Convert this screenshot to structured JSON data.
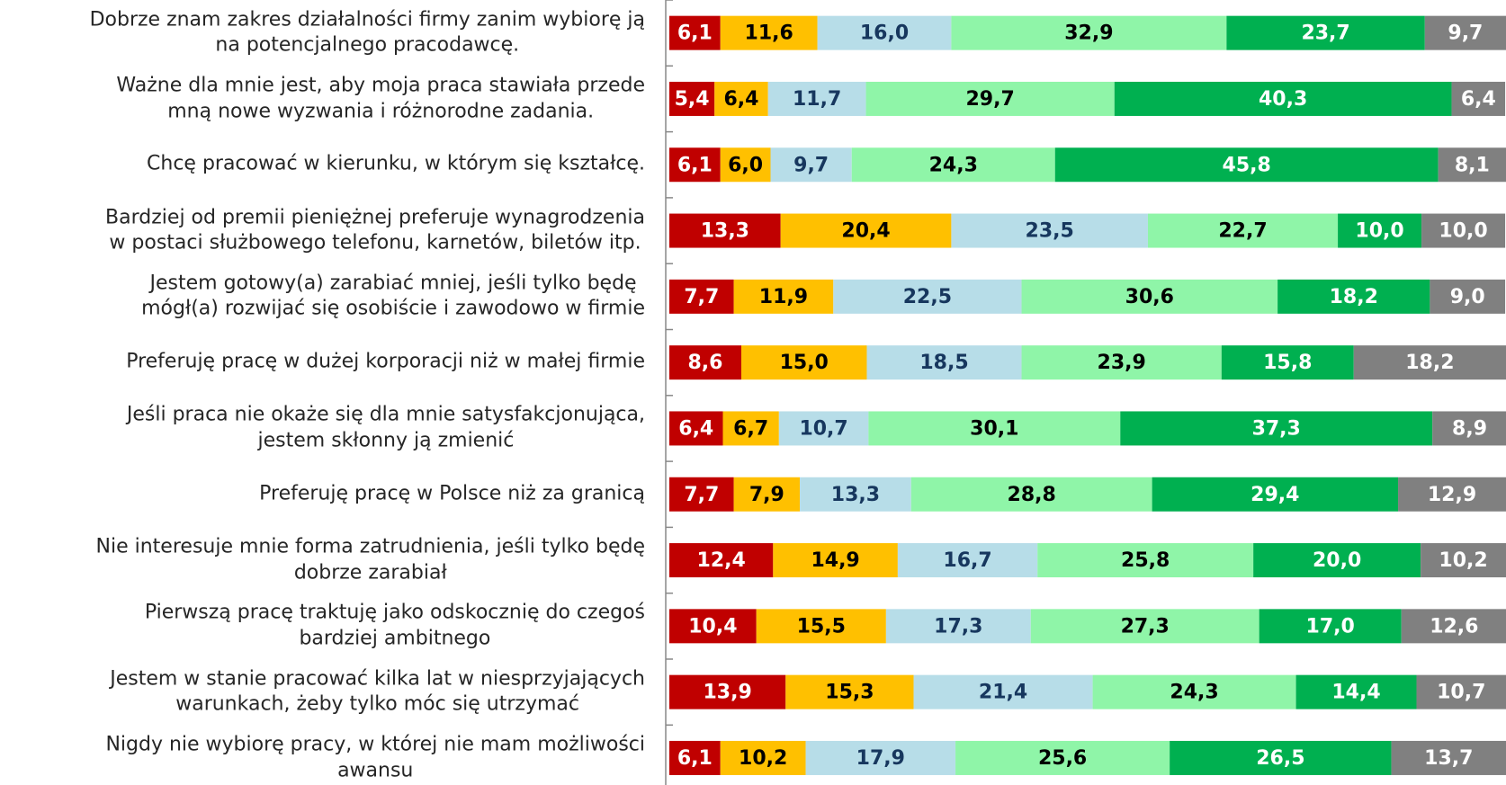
{
  "chart_data": {
    "type": "stacked_barh",
    "categories": [
      "Dobrze znam zakres działalności firmy zanim wybiorę ją\nna potencjalnego pracodawcę.",
      "Ważne dla mnie jest, aby moja praca stawiała przede\nmną nowe wyzwania i różnorodne zadania.",
      "Chcę pracować w kierunku, w którym się kształcę.",
      "Bardziej od premii pieniężnej preferuje wynagrodzenia\nw postaci służbowego telefonu, karnetów, biletów itp.",
      "Jestem gotowy(a) zarabiać mniej, jeśli tylko będę\nmógł(a) rozwijać się osobiście i zawodowo w firmie",
      "Preferuję pracę w dużej korporacji niż w małej firmie",
      "Jeśli praca nie okaże się dla mnie satysfakcjonująca,\njestem skłonny ją zmienić",
      "Preferuję pracę w Polsce niż za granicą",
      "Nie interesuje mnie forma zatrudnienia, jeśli tylko będę\ndobrze zarabiał",
      "Pierwszą pracę traktuję jako odskocznię do czegoś\nbardziej ambitnego",
      "Jestem w stanie pracować kilka lat w niesprzyjających\nwarunkach, żeby tylko móc się utrzymać",
      "Nigdy nie wybiorę pracy, w której  nie mam możliwości\nawansu"
    ],
    "xlim": [
      0,
      100
    ],
    "series": [
      {
        "color": "#c00000",
        "label_color": "#ffffff",
        "values": [
          6.1,
          5.4,
          6.1,
          13.3,
          7.7,
          8.6,
          6.4,
          7.7,
          12.4,
          10.4,
          13.9,
          6.1
        ],
        "value_labels": [
          "6,1",
          "5,4",
          "6,1",
          "13,3",
          "7,7",
          "8,6",
          "6,4",
          "7,7",
          "12,4",
          "10,4",
          "13,9",
          "6,1"
        ]
      },
      {
        "color": "#ffc000",
        "label_color": "#000000",
        "values": [
          11.6,
          6.4,
          6.0,
          20.4,
          11.9,
          15.0,
          6.7,
          7.9,
          14.9,
          15.5,
          15.3,
          10.2
        ],
        "value_labels": [
          "11,6",
          "6,4",
          "6,0",
          "20,4",
          "11,9",
          "15,0",
          "6,7",
          "7,9",
          "14,9",
          "15,5",
          "15,3",
          "10,2"
        ]
      },
      {
        "color": "#b7dde8",
        "label_color": "#17375e",
        "values": [
          16.0,
          11.7,
          9.7,
          23.5,
          22.5,
          18.5,
          10.7,
          13.3,
          16.7,
          17.3,
          21.4,
          17.9
        ],
        "value_labels": [
          "16,0",
          "11,7",
          "9,7",
          "23,5",
          "22,5",
          "18,5",
          "10,7",
          "13,3",
          "16,7",
          "17,3",
          "21,4",
          "17,9"
        ]
      },
      {
        "color": "#8ff5a8",
        "label_color": "#000000",
        "values": [
          32.9,
          29.7,
          24.3,
          22.7,
          30.6,
          23.9,
          30.1,
          28.8,
          25.8,
          27.3,
          24.3,
          25.6
        ],
        "value_labels": [
          "32,9",
          "29,7",
          "24,3",
          "22,7",
          "30,6",
          "23,9",
          "30,1",
          "28,8",
          "25,8",
          "27,3",
          "24,3",
          "25,6"
        ]
      },
      {
        "color": "#00b050",
        "label_color": "#ffffff",
        "values": [
          23.7,
          40.3,
          45.8,
          10.0,
          18.2,
          15.8,
          37.3,
          29.4,
          20.0,
          17.0,
          14.4,
          26.5
        ],
        "value_labels": [
          "23,7",
          "40,3",
          "45,8",
          "10,0",
          "18,2",
          "15,8",
          "37,3",
          "29,4",
          "20,0",
          "17,0",
          "14,4",
          "26,5"
        ]
      },
      {
        "color": "#808080",
        "label_color": "#ffffff",
        "values": [
          9.7,
          6.4,
          8.1,
          10.0,
          9.0,
          18.2,
          8.9,
          12.9,
          10.2,
          12.6,
          10.7,
          13.7
        ],
        "value_labels": [
          "9,7",
          "6,4",
          "8,1",
          "10,0",
          "9,0",
          "18,2",
          "8,9",
          "12,9",
          "10,2",
          "12,6",
          "10,7",
          "13,7"
        ]
      }
    ]
  }
}
